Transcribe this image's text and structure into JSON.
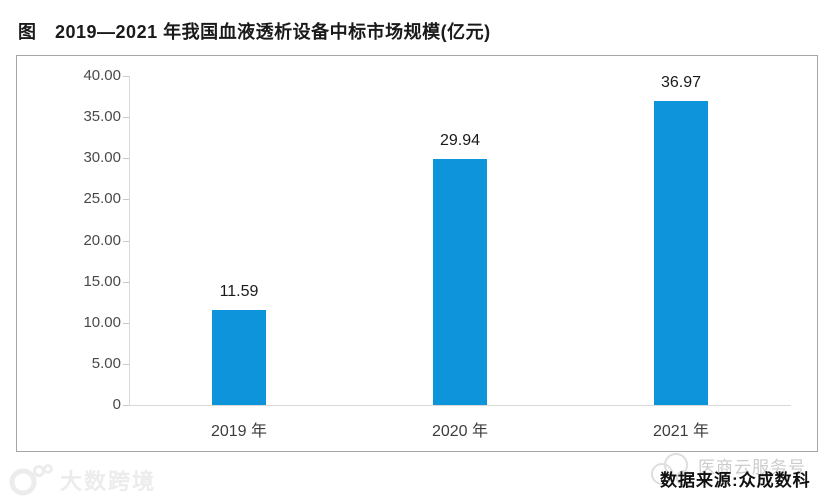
{
  "page": {
    "title": "图　2019—2021 年我国血液透析设备中标市场规模(亿元)"
  },
  "chart_data": {
    "type": "bar",
    "title": "2019—2021 年我国血液透析设备中标市场规模(亿元)",
    "categories": [
      "2019 年",
      "2020 年",
      "2021 年"
    ],
    "values": [
      11.59,
      29.94,
      36.97
    ],
    "value_labels": [
      "11.59",
      "29.94",
      "36.97"
    ],
    "ylabel": "",
    "xlabel": "",
    "ylim": [
      0,
      40
    ],
    "ytick_step": 5,
    "ytick_labels": [
      "40.00",
      "35.00",
      "30.00",
      "25.00",
      "20.00",
      "15.00",
      "10.00",
      "5.00",
      "0"
    ],
    "bar_color": "#0E94DB",
    "grid": false,
    "legend": null
  },
  "footer": {
    "source_label": "数据来源:众成数科"
  },
  "watermarks": {
    "bottom_left": "大数跨境",
    "bottom_right": "医商云服务号"
  },
  "icons": {
    "bottom_left_logo": "dashu-logo-icon",
    "bottom_right_logo": "cloud-icon"
  }
}
